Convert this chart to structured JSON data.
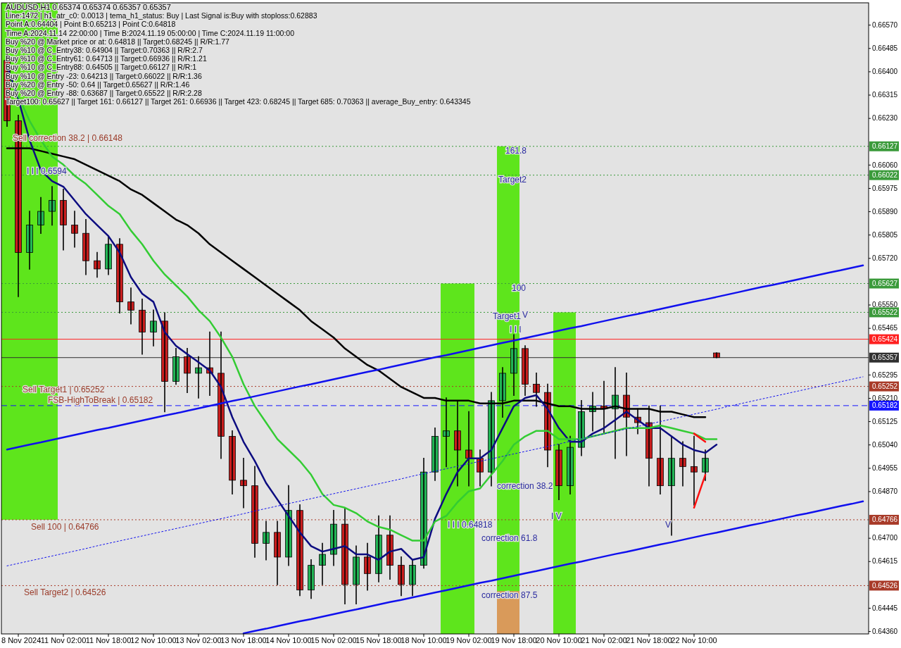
{
  "chart_data": {
    "type": "candlestick",
    "title": "AUDUSD,H1  0.65374 0.65374 0.65357 0.65357",
    "categories": [
      null,
      "8 Nov 2024",
      null,
      null,
      null,
      "11 Nov 02:00",
      null,
      null,
      null,
      "11 Nov 18:00",
      null,
      null,
      null,
      "12 Nov 10:00",
      null,
      null,
      null,
      "13 Nov 02:00",
      null,
      null,
      null,
      "13 Nov 18:00",
      null,
      null,
      null,
      "14 Nov 10:00",
      null,
      null,
      null,
      "15 Nov 02:00",
      null,
      null,
      null,
      "15 Nov 18:00",
      null,
      null,
      null,
      "18 Nov 10:00",
      null,
      null,
      null,
      "19 Nov 02:00",
      null,
      null,
      null,
      "19 Nov 18:00",
      null,
      null,
      null,
      "20 Nov 10:00",
      null,
      null,
      null,
      "21 Nov 02:00",
      null,
      null,
      null,
      "21 Nov 18:00",
      null,
      null,
      null,
      "22 Nov 10:00",
      null,
      null,
      null,
      null,
      null,
      null,
      null,
      null,
      null,
      null,
      null,
      null,
      null,
      null,
      null
    ],
    "ohlc": [
      [
        0.6644,
        0.6647,
        0.662,
        0.6622
      ],
      [
        0.6622,
        0.6624,
        0.6558,
        0.6574
      ],
      [
        0.6574,
        0.6589,
        0.6568,
        0.6584
      ],
      [
        0.6584,
        0.6594,
        0.6581,
        0.6589
      ],
      [
        0.6589,
        0.6598,
        0.6584,
        0.6593
      ],
      [
        0.6593,
        0.6597,
        0.6575,
        0.6584
      ],
      [
        0.6584,
        0.6589,
        0.6576,
        0.6581
      ],
      [
        0.6581,
        0.6586,
        0.6566,
        0.6571
      ],
      [
        0.6571,
        0.6574,
        0.6565,
        0.6568
      ],
      [
        0.6568,
        0.658,
        0.6566,
        0.6577
      ],
      [
        0.6577,
        0.6579,
        0.6552,
        0.6556
      ],
      [
        0.6556,
        0.6561,
        0.6548,
        0.6553
      ],
      [
        0.6553,
        0.6557,
        0.6537,
        0.6545
      ],
      [
        0.6545,
        0.6553,
        0.654,
        0.6549
      ],
      [
        0.6549,
        0.6552,
        0.6516,
        0.6527
      ],
      [
        0.6527,
        0.6539,
        0.6526,
        0.6536
      ],
      [
        0.6536,
        0.6539,
        0.6523,
        0.653
      ],
      [
        0.653,
        0.6536,
        0.6521,
        0.6532
      ],
      [
        0.6532,
        0.6545,
        0.6522,
        0.653
      ],
      [
        0.653,
        0.6545,
        0.6499,
        0.6507
      ],
      [
        0.6507,
        0.6509,
        0.6486,
        0.6491
      ],
      [
        0.6491,
        0.6499,
        0.6481,
        0.6489
      ],
      [
        0.6489,
        0.6496,
        0.6463,
        0.6468
      ],
      [
        0.6468,
        0.6476,
        0.6462,
        0.6472
      ],
      [
        0.6472,
        0.6476,
        0.6453,
        0.6463
      ],
      [
        0.6463,
        0.6489,
        0.646,
        0.648
      ],
      [
        0.648,
        0.6482,
        0.6449,
        0.6451
      ],
      [
        0.6451,
        0.6462,
        0.6448,
        0.646
      ],
      [
        0.646,
        0.6468,
        0.6453,
        0.6464
      ],
      [
        0.6464,
        0.648,
        0.646,
        0.6475
      ],
      [
        0.6475,
        0.6481,
        0.6446,
        0.6453
      ],
      [
        0.6453,
        0.6467,
        0.6446,
        0.6463
      ],
      [
        0.6463,
        0.6468,
        0.6451,
        0.6457
      ],
      [
        0.6457,
        0.6478,
        0.6454,
        0.6471
      ],
      [
        0.6471,
        0.6478,
        0.6455,
        0.646
      ],
      [
        0.646,
        0.6463,
        0.6449,
        0.6453
      ],
      [
        0.6453,
        0.6462,
        0.6449,
        0.646
      ],
      [
        0.646,
        0.6499,
        0.6459,
        0.6494
      ],
      [
        0.6494,
        0.651,
        0.6491,
        0.6507
      ],
      [
        0.6507,
        0.6521,
        0.6496,
        0.6509
      ],
      [
        0.6509,
        0.652,
        0.6489,
        0.6502
      ],
      [
        0.6502,
        0.6516,
        0.6489,
        0.6499
      ],
      [
        0.6499,
        0.6502,
        0.6489,
        0.6494
      ],
      [
        0.6494,
        0.6523,
        0.6489,
        0.652
      ],
      [
        0.652,
        0.6532,
        0.6514,
        0.653
      ],
      [
        0.653,
        0.6544,
        0.6522,
        0.6539
      ],
      [
        0.6539,
        0.654,
        0.6522,
        0.6526
      ],
      [
        0.6526,
        0.653,
        0.6518,
        0.6523
      ],
      [
        0.6523,
        0.6526,
        0.6496,
        0.6502
      ],
      [
        0.6502,
        0.6504,
        0.6484,
        0.6489
      ],
      [
        0.6489,
        0.6507,
        0.6486,
        0.6503
      ],
      [
        0.6503,
        0.652,
        0.65,
        0.6516
      ],
      [
        0.6516,
        0.6523,
        0.6509,
        0.6518
      ],
      [
        0.6518,
        0.6527,
        0.6508,
        0.6517
      ],
      [
        0.6517,
        0.6532,
        0.6499,
        0.6522
      ],
      [
        0.6522,
        0.653,
        0.65,
        0.6514
      ],
      [
        0.6514,
        0.6517,
        0.6508,
        0.6512
      ],
      [
        0.6512,
        0.6518,
        0.6489,
        0.6499
      ],
      [
        0.6499,
        0.6518,
        0.6486,
        0.6489
      ],
      [
        0.6489,
        0.6507,
        0.6471,
        0.6499
      ],
      [
        0.6499,
        0.6505,
        0.6489,
        0.6496
      ],
      [
        0.6496,
        0.6507,
        0.6482,
        0.6494
      ],
      [
        0.6494,
        0.6502,
        0.6491,
        0.6499
      ],
      [
        0.65374,
        0.65374,
        0.65357,
        0.65357
      ],
      null,
      null,
      null,
      null,
      null,
      null,
      null,
      null,
      null,
      null,
      null,
      null,
      null
    ],
    "series": [
      {
        "type": "bar",
        "color": "#5ee51c",
        "values": [
          0.01884,
          0.01884,
          0.01884,
          0.01884,
          0.01884,
          null,
          null,
          null,
          null,
          null,
          null,
          null,
          null,
          null,
          null,
          null,
          null,
          null,
          null,
          null,
          null,
          null,
          null,
          null,
          null,
          null,
          null,
          null,
          null,
          null,
          null,
          null,
          null,
          null,
          null,
          null,
          null,
          null,
          null,
          0.01277,
          0.01277,
          0.01277,
          null,
          null,
          0.01777,
          0.01777,
          null,
          null,
          null,
          0.01172,
          0.01172,
          null,
          null,
          null,
          null,
          null,
          null,
          null,
          null,
          null,
          null,
          null,
          null,
          null,
          null,
          null,
          null,
          null,
          null,
          null,
          null,
          null,
          null,
          null,
          null,
          null,
          null
        ],
        "base": [
          0.64766,
          0.64766,
          0.64766,
          0.64766,
          0.64766,
          null,
          null,
          null,
          null,
          null,
          null,
          null,
          null,
          null,
          null,
          null,
          null,
          null,
          null,
          null,
          null,
          null,
          null,
          null,
          null,
          null,
          null,
          null,
          null,
          null,
          null,
          null,
          null,
          null,
          null,
          null,
          null,
          null,
          null,
          0.6435,
          0.6435,
          0.6435,
          null,
          null,
          0.6435,
          0.6435,
          null,
          null,
          null,
          0.6435,
          0.6435,
          null,
          null,
          null,
          null,
          null,
          null,
          null,
          null,
          null,
          null,
          null,
          null,
          null,
          null,
          null,
          null,
          null,
          null,
          null,
          null,
          null,
          null,
          null,
          null,
          null,
          null
        ]
      },
      {
        "type": "bar",
        "color": "#d99a5a",
        "values": [
          null,
          null,
          null,
          null,
          null,
          null,
          null,
          null,
          null,
          null,
          null,
          null,
          null,
          null,
          null,
          null,
          null,
          null,
          null,
          null,
          null,
          null,
          null,
          null,
          null,
          null,
          null,
          null,
          null,
          null,
          null,
          null,
          null,
          null,
          null,
          null,
          null,
          null,
          null,
          null,
          null,
          null,
          null,
          null,
          0.00156,
          0.00156,
          null,
          null,
          null,
          null,
          null,
          null,
          null,
          null,
          null,
          null,
          null,
          null,
          null,
          null,
          null,
          null,
          null,
          null,
          null,
          null,
          null,
          null,
          null,
          null,
          null,
          null,
          null,
          null,
          null,
          null,
          null
        ],
        "base": [
          null,
          null,
          null,
          null,
          null,
          null,
          null,
          null,
          null,
          null,
          null,
          null,
          null,
          null,
          null,
          null,
          null,
          null,
          null,
          null,
          null,
          null,
          null,
          null,
          null,
          null,
          null,
          null,
          null,
          null,
          null,
          null,
          null,
          null,
          null,
          null,
          null,
          null,
          null,
          null,
          null,
          null,
          null,
          null,
          0.6435,
          0.6435,
          null,
          null,
          null,
          null,
          null,
          null,
          null,
          null,
          null,
          null,
          null,
          null,
          null,
          null,
          null,
          null,
          null,
          null,
          null,
          null,
          null,
          null,
          null,
          null,
          null,
          null,
          null,
          null,
          null,
          null,
          null
        ]
      },
      {
        "type": "line",
        "color": "#000000",
        "values": [
          0.6612,
          0.6612,
          0.6612,
          0.6611,
          0.661,
          0.6609,
          0.6608,
          0.6606,
          0.6604,
          0.6602,
          0.66,
          0.6597,
          0.6595,
          0.6592,
          0.6589,
          0.6586,
          0.6584,
          0.6581,
          0.6577,
          0.6574,
          0.6571,
          0.6568,
          0.6565,
          0.6562,
          0.6559,
          0.6556,
          0.6553,
          0.6549,
          0.6546,
          0.6543,
          0.6539,
          0.6536,
          0.6533,
          0.6531,
          0.6528,
          0.6525,
          0.6523,
          0.6521,
          0.6521,
          0.652,
          0.652,
          0.652,
          0.6519,
          0.6519,
          0.6519,
          0.652,
          0.652,
          0.652,
          0.6519,
          0.6518,
          0.6518,
          0.6517,
          0.6517,
          0.6517,
          0.6518,
          0.6517,
          0.6517,
          0.6517,
          0.6516,
          0.6516,
          0.6515,
          0.6514,
          0.6514,
          null,
          null,
          null,
          null,
          null,
          null,
          null,
          null,
          null,
          null,
          null,
          null,
          null,
          null
        ]
      },
      {
        "type": "line",
        "color": "#0c0c80",
        "values": [
          0.6642,
          0.663,
          0.6615,
          0.6604,
          0.66,
          0.6598,
          0.6593,
          0.6588,
          0.6584,
          0.658,
          0.6574,
          0.6565,
          0.6559,
          0.6556,
          0.6545,
          0.654,
          0.6537,
          0.6534,
          0.6531,
          0.6525,
          0.6514,
          0.6505,
          0.6498,
          0.649,
          0.6484,
          0.6478,
          0.6472,
          0.6467,
          0.6465,
          0.6466,
          0.6467,
          0.6464,
          0.6464,
          0.6462,
          0.6465,
          0.6466,
          0.6462,
          0.6463,
          0.6477,
          0.6486,
          0.6494,
          0.6499,
          0.6499,
          0.6502,
          0.651,
          0.6518,
          0.6521,
          0.6522,
          0.6517,
          0.651,
          0.6505,
          0.6505,
          0.6508,
          0.651,
          0.6513,
          0.6516,
          0.6513,
          0.651,
          0.651,
          0.6507,
          0.6504,
          0.6502,
          0.6501,
          0.6504,
          null,
          null,
          null,
          null,
          null,
          null,
          null,
          null,
          null,
          null,
          null,
          null,
          null
        ]
      },
      {
        "type": "line",
        "color": "#33cc33",
        "values": [
          null,
          0.6631,
          0.6622,
          0.6615,
          0.6609,
          0.6606,
          0.6602,
          0.6599,
          0.6595,
          0.6591,
          0.6588,
          0.6582,
          0.6577,
          0.6571,
          0.6566,
          0.6562,
          0.6558,
          0.6553,
          0.6549,
          0.6543,
          0.6536,
          0.6526,
          0.6518,
          0.6512,
          0.6506,
          0.6502,
          0.6498,
          0.6493,
          0.6486,
          0.6482,
          0.6481,
          0.6479,
          0.6476,
          0.6474,
          0.6473,
          0.6471,
          0.6469,
          0.6469,
          0.6476,
          0.6478,
          0.6483,
          0.6487,
          0.6488,
          0.6493,
          0.6498,
          0.6504,
          0.6507,
          0.6509,
          0.6509,
          0.6506,
          0.6506,
          0.6506,
          0.6507,
          0.6508,
          0.6509,
          0.651,
          0.651,
          0.651,
          0.6511,
          0.651,
          0.6509,
          0.6508,
          0.6506,
          0.6506,
          null,
          null,
          null,
          null,
          null,
          null,
          null,
          null,
          null,
          null,
          null,
          null,
          null
        ]
      },
      {
        "type": "line",
        "color": "#1010ee",
        "values": [
          0.65022,
          0.65031,
          0.6504,
          0.65048,
          0.65057,
          0.65066,
          0.65075,
          0.65084,
          0.65093,
          0.65101,
          0.6511,
          0.65119,
          0.65128,
          0.65137,
          0.65146,
          0.65154,
          0.65163,
          0.65172,
          0.65181,
          0.6519,
          0.65199,
          0.65207,
          0.65216,
          0.65225,
          0.65234,
          0.65243,
          0.65252,
          0.6526,
          0.65269,
          0.65278,
          0.65287,
          0.65296,
          0.65305,
          0.65313,
          0.65322,
          0.65331,
          0.6534,
          0.65349,
          0.65358,
          0.65366,
          0.65375,
          0.65384,
          0.65393,
          0.65402,
          0.65411,
          0.65419,
          0.65428,
          0.65437,
          0.65446,
          0.65455,
          0.65464,
          0.65472,
          0.65481,
          0.6549,
          0.65499,
          0.65508,
          0.65516,
          0.65525,
          0.65534,
          0.65543,
          0.65552,
          0.65561,
          0.65569,
          0.65578,
          0.65587,
          0.65596,
          0.65605,
          0.65614,
          0.65622,
          0.65631,
          0.6564,
          0.65649,
          0.65658,
          0.65667,
          0.65675,
          0.65684,
          0.65693
        ]
      },
      {
        "type": "line",
        "color": "#1010ee",
        "line_style": "dotted",
        "values": [
          0.64598,
          0.64607,
          0.64616,
          0.64625,
          0.64634,
          0.64643,
          0.64652,
          0.64661,
          0.64671,
          0.6468,
          0.64689,
          0.64698,
          0.64707,
          0.64716,
          0.64725,
          0.64734,
          0.64743,
          0.64752,
          0.64761,
          0.6477,
          0.64779,
          0.64788,
          0.64798,
          0.64807,
          0.64816,
          0.64825,
          0.64834,
          0.64843,
          0.64852,
          0.64861,
          0.6487,
          0.64879,
          0.64888,
          0.64897,
          0.64906,
          0.64915,
          0.64925,
          0.64934,
          0.64943,
          0.64952,
          0.64961,
          0.6497,
          0.64979,
          0.64988,
          0.64997,
          0.65006,
          0.65015,
          0.65024,
          0.65033,
          0.65042,
          0.65052,
          0.65061,
          0.6507,
          0.65079,
          0.65088,
          0.65097,
          0.65106,
          0.65115,
          0.65124,
          0.65133,
          0.65142,
          0.65151,
          0.6516,
          0.65169,
          0.65179,
          0.65188,
          0.65197,
          0.65206,
          0.65215,
          0.65224,
          0.65233,
          0.65242,
          0.65251,
          0.6526,
          0.65269,
          0.65278,
          0.65287
        ]
      },
      {
        "type": "line",
        "color": "#1010ee",
        "values": [
          null,
          null,
          null,
          null,
          null,
          null,
          null,
          null,
          null,
          null,
          null,
          null,
          null,
          null,
          null,
          null,
          null,
          null,
          null,
          null,
          null,
          0.64352,
          0.64361,
          0.64369,
          0.64378,
          0.64387,
          0.64396,
          0.64404,
          0.64413,
          0.64422,
          0.64431,
          0.64439,
          0.64448,
          0.64457,
          0.64466,
          0.64474,
          0.64483,
          0.64492,
          0.64501,
          0.64509,
          0.64518,
          0.64527,
          0.64536,
          0.64544,
          0.64553,
          0.64562,
          0.64571,
          0.64579,
          0.64588,
          0.64597,
          0.64606,
          0.64614,
          0.64623,
          0.64632,
          0.64641,
          0.64649,
          0.64658,
          0.64667,
          0.64676,
          0.64684,
          0.64693,
          0.64702,
          0.64711,
          0.64719,
          0.64728,
          0.64737,
          0.64746,
          0.64754,
          0.64763,
          0.64772,
          0.64781,
          0.64789,
          0.64798,
          0.64807,
          0.64816,
          0.64824,
          0.64833
        ]
      },
      {
        "type": "line",
        "color": "#ff1010",
        "values": [
          null,
          null,
          null,
          null,
          null,
          null,
          null,
          null,
          null,
          null,
          null,
          null,
          null,
          null,
          null,
          null,
          null,
          null,
          null,
          null,
          null,
          null,
          null,
          null,
          null,
          null,
          null,
          null,
          null,
          null,
          null,
          null,
          null,
          null,
          null,
          null,
          null,
          null,
          null,
          null,
          null,
          null,
          null,
          null,
          null,
          null,
          null,
          null,
          null,
          null,
          null,
          null,
          null,
          null,
          null,
          null,
          null,
          null,
          null,
          null,
          null,
          0.6508,
          0.6505,
          null,
          null,
          null,
          null,
          null,
          null,
          null,
          null,
          null,
          null,
          null,
          null,
          null,
          null
        ]
      },
      {
        "type": "line",
        "color": "#ff1010",
        "values": [
          null,
          null,
          null,
          null,
          null,
          null,
          null,
          null,
          null,
          null,
          null,
          null,
          null,
          null,
          null,
          null,
          null,
          null,
          null,
          null,
          null,
          null,
          null,
          null,
          null,
          null,
          null,
          null,
          null,
          null,
          null,
          null,
          null,
          null,
          null,
          null,
          null,
          null,
          null,
          null,
          null,
          null,
          null,
          null,
          null,
          null,
          null,
          null,
          null,
          null,
          null,
          null,
          null,
          null,
          null,
          null,
          null,
          null,
          null,
          null,
          null,
          0.6481,
          0.6493,
          null,
          null,
          null,
          null,
          null,
          null,
          null,
          null,
          null,
          null,
          null,
          null,
          null,
          null
        ]
      }
    ],
    "ylim": [
      0.6435,
      0.6665
    ],
    "yticks": [
      {
        "value": 0.6657,
        "label": "0.66570"
      },
      0.66485,
      {
        "value": 0.664,
        "label": "0.66400"
      },
      0.66315,
      {
        "value": 0.6623,
        "label": "0.66230"
      },
      {
        "value": 0.6606,
        "label": "0.66060"
      },
      0.65975,
      {
        "value": 0.6589,
        "label": "0.65890"
      },
      0.65805,
      {
        "value": 0.6572,
        "label": "0.65720"
      },
      {
        "value": 0.6555,
        "label": "0.65550"
      },
      0.65465,
      0.65295,
      {
        "value": 0.6521,
        "label": "0.65210"
      },
      0.65125,
      {
        "value": 0.6504,
        "label": "0.65040"
      },
      0.64955,
      {
        "value": 0.6487,
        "label": "0.64870"
      },
      {
        "value": 0.647,
        "label": "0.64700"
      },
      0.64615,
      0.64445,
      {
        "value": 0.6436,
        "label": "0.64360"
      }
    ],
    "ref_lines": [
      {
        "axis": "y",
        "value": 0.66127,
        "label": "0.66127",
        "color": "#3a9a3a",
        "line_style": "dotted"
      },
      {
        "axis": "y",
        "value": 0.66022,
        "label": "0.66022",
        "color": "#3a9a3a",
        "line_style": "dotted"
      },
      {
        "axis": "y",
        "value": 0.65627,
        "label": "0.65627",
        "color": "#3a9a3a",
        "line_style": "dotted"
      },
      {
        "axis": "y",
        "value": 0.65522,
        "label": "0.65522",
        "color": "#3a9a3a",
        "line_style": "dotted"
      },
      {
        "axis": "y",
        "value": 0.65424,
        "label": "0.65424",
        "color": "#ff2020",
        "line_style": "solid"
      },
      {
        "axis": "y",
        "value": 0.65357,
        "label": "0.65357",
        "color": "#303030",
        "line_style": "solid"
      },
      {
        "axis": "y",
        "value": 0.65252,
        "label": "0.65252",
        "color": "#a83a28",
        "line_style": "dotted"
      },
      {
        "axis": "y",
        "value": 0.65182,
        "label": "0.65182",
        "color": "#1414ff",
        "line_style": "dashed"
      },
      {
        "axis": "y",
        "value": 0.64766,
        "label": "0.64766",
        "color": "#a83a28",
        "line_style": "dotted"
      },
      {
        "axis": "y",
        "value": 0.64526,
        "label": "0.64526",
        "color": "#a83a28",
        "line_style": "dotted"
      }
    ],
    "annotations": [
      "Line:1472 | h1_atr_c0: 0.0013 | tema_h1_status: Buy | Last Signal is:Buy with stoploss:0.62883",
      "Point A:0.64404 | Point B:0.65213 | Point C:0.64818",
      "Time A:2024.11.14 22:00:00 | Time B:2024.11.19 05:00:00 | Time C:2024.11.19 11:00:00",
      "Buy %20 @ Market price or at: 0.64818 || Target:0.68245 || R/R:1.77",
      "Buy %10 @ C_Entry38: 0.64904 || Target:0.70363 || R/R:2.7",
      "Buy %10 @ C_Entry61: 0.64713 || Target:0.66936 || R/R:1.21",
      "Buy %10 @ C_Entry88: 0.64505 || Target:0.66127 || R/R:1",
      "Buy %10 @ Entry -23: 0.64213 || Target:0.66022 || R/R:1.36",
      "Buy %20 @ Entry -50: 0.64 || Target:0.65627 || R/R:1.46",
      "Buy %20 @ Entry -88: 0.63687 || Target:0.65522 || R/R:2.28",
      "Target100: 0.65627 || Target 161: 0.66127 || Target 261: 0.66936 || Target 423: 0.68245 || Target 685: 0.70363 || average_Buy_entry: 0.643345",
      "I I I 0.6594",
      "161.8",
      "Target2",
      "100",
      "Target1",
      "V",
      "I I I",
      "I I I 0.64818",
      "correction 38.2",
      "correction 61.8",
      "correction 87.5",
      "I V",
      "V",
      "Sell correction 38.2 | 0.66148",
      "Sell Target1 | 0.65252",
      "FSB-HighToBreak | 0.65182",
      "Sell 100 | 0.64766",
      "Sell Target2 | 0.64526"
    ]
  }
}
